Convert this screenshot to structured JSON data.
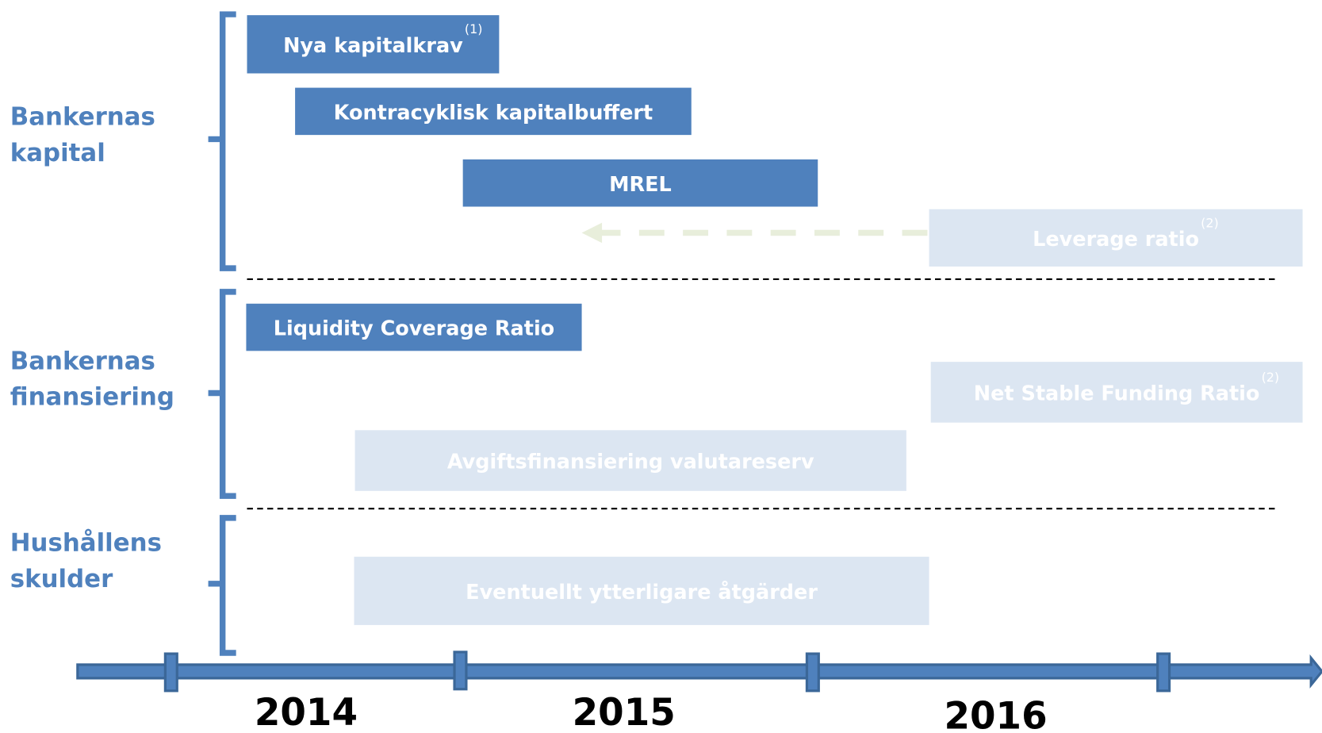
{
  "groups": [
    {
      "lines": [
        "Bankernas",
        "kapital"
      ]
    },
    {
      "lines": [
        "Bankernas",
        "finansiering"
      ]
    },
    {
      "lines": [
        "Hushållens",
        "skulder"
      ]
    }
  ],
  "bars": [
    {
      "label": "Nya kapitalkrav",
      "note": "(1)"
    },
    {
      "label": "Kontracyklisk kapitalbuffert"
    },
    {
      "label": "MREL"
    },
    {
      "label": "Leverage ratio",
      "note": "(2)"
    },
    {
      "label": "Liquidity Coverage Ratio"
    },
    {
      "label": "Net Stable Funding Ratio",
      "note": "(2)"
    },
    {
      "label": "Avgiftsfinansiering valutareserv"
    },
    {
      "label": "Eventuellt ytterligare åtgärder"
    }
  ],
  "years": [
    "2014",
    "2015",
    "2016"
  ]
}
